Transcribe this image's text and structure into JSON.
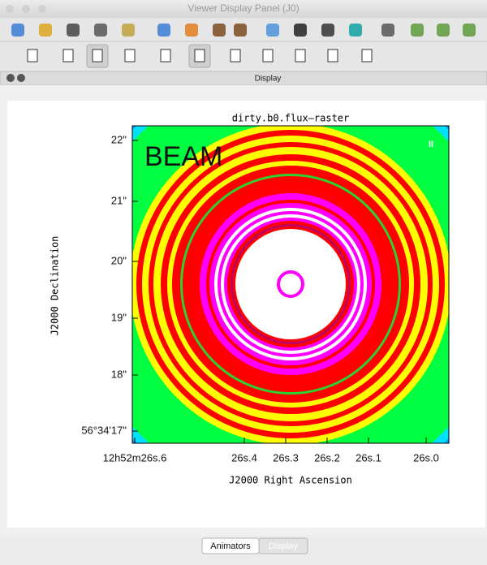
{
  "window": {
    "title": "Viewer Display Panel (J0)"
  },
  "panel": {
    "title": "Display"
  },
  "plot": {
    "title": "dirty.b0.flux—raster",
    "beam_label": "BEAM",
    "marker": "II",
    "y_axis": {
      "label": "J2000 Declination",
      "ticks": [
        "22\"",
        "21\"",
        "20\"",
        "19\"",
        "18\"",
        "56°34'17\""
      ]
    },
    "x_axis": {
      "label": "J2000 Right Ascension",
      "ticks": [
        "12h52m26s.6",
        "26s.4",
        "26s.3",
        "26s.2",
        "26s.1",
        "26s.0"
      ]
    }
  },
  "tabs": [
    "Animators",
    "Display"
  ]
}
